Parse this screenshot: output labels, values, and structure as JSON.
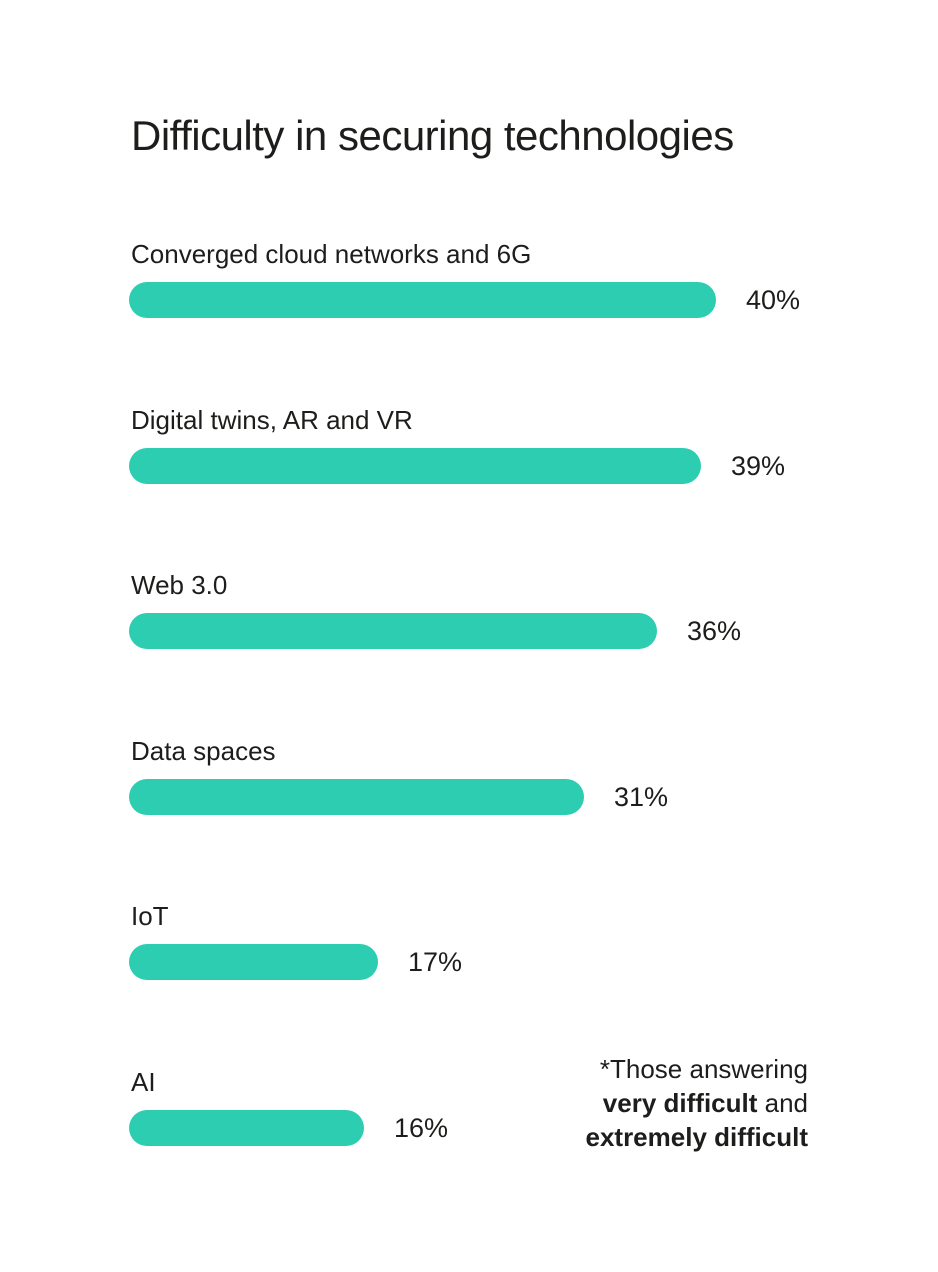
{
  "chart_data": {
    "type": "bar",
    "orientation": "horizontal",
    "title": "Difficulty in securing technologies",
    "categories": [
      "Converged cloud networks and 6G",
      "Digital twins, AR and VR",
      "Web 3.0",
      "Data spaces",
      "IoT",
      "AI"
    ],
    "values": [
      40,
      39,
      36,
      31,
      17,
      16
    ],
    "value_labels": [
      "40%",
      "39%",
      "36%",
      "31%",
      "17%",
      "16%"
    ],
    "unit": "%",
    "xlim": [
      0,
      40
    ],
    "grid": false,
    "legend": "none",
    "bar_color": "#2dcdb2"
  },
  "footnote": {
    "line1": "*Those answering",
    "line2_bold": "very difficult",
    "line2_rest": " and",
    "line3_bold": "extremely difficult"
  }
}
